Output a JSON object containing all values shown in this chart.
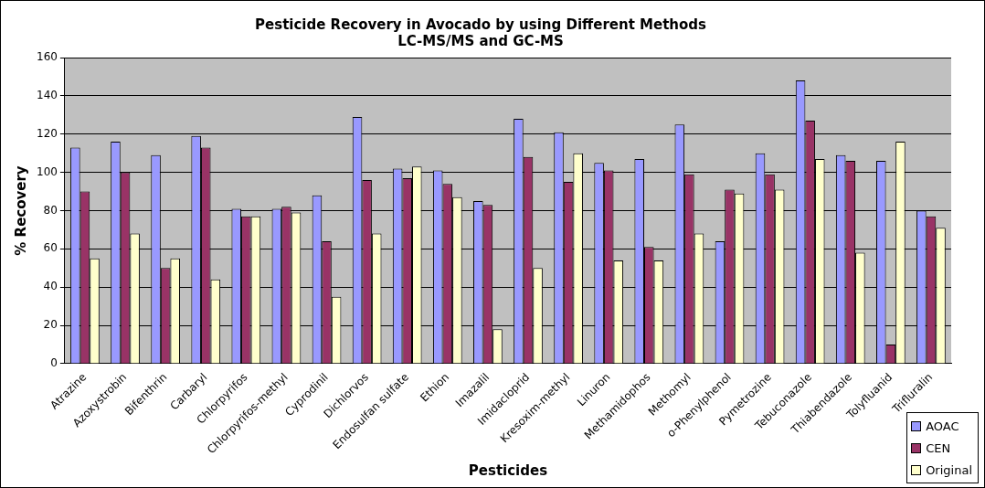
{
  "chart_data": {
    "type": "bar",
    "title": "Pesticide Recovery in Avocado by using Different Methods\nLC-MS/MS and GC-MS",
    "xlabel": "Pesticides",
    "ylabel": "% Recovery",
    "categories": [
      "Atrazine",
      "Azoxystrobin",
      "Bifenthrin",
      "Carbaryl",
      "Chlorpyrifos",
      "Chlorpyrifos-methyl",
      "Cyprodinil",
      "Dichlorvos",
      "Endosulfan sulfate",
      "Ethion",
      "Imazalil",
      "Imidacloprid",
      "Kresoxim-methyl",
      "Linuron",
      "Methamidophos",
      "Methomyl",
      "o-Phenylphenol",
      "Pymetrozine",
      "Tebuconazole",
      "Thiabendazole",
      "Tolyfluanid",
      "Trifluralin"
    ],
    "series": [
      {
        "name": "AOAC",
        "color": "#9999ff",
        "values": [
          113,
          116,
          109,
          119,
          81,
          81,
          88,
          129,
          102,
          101,
          85,
          128,
          121,
          105,
          107,
          125,
          64,
          110,
          148,
          109,
          106,
          80
        ]
      },
      {
        "name": "CEN",
        "color": "#993366",
        "values": [
          90,
          100,
          50,
          113,
          77,
          82,
          64,
          96,
          97,
          94,
          83,
          108,
          95,
          101,
          61,
          99,
          91,
          99,
          127,
          106,
          10,
          77
        ]
      },
      {
        "name": "Original",
        "color": "#ffffcc",
        "values": [
          55,
          68,
          55,
          44,
          77,
          79,
          35,
          68,
          103,
          87,
          18,
          50,
          110,
          54,
          54,
          68,
          89,
          91,
          107,
          58,
          116,
          71
        ]
      }
    ],
    "ylim": [
      0,
      160
    ],
    "yticks": [
      0,
      20,
      40,
      60,
      80,
      100,
      120,
      140,
      160
    ],
    "grid": "y",
    "legend": "bottom right"
  }
}
